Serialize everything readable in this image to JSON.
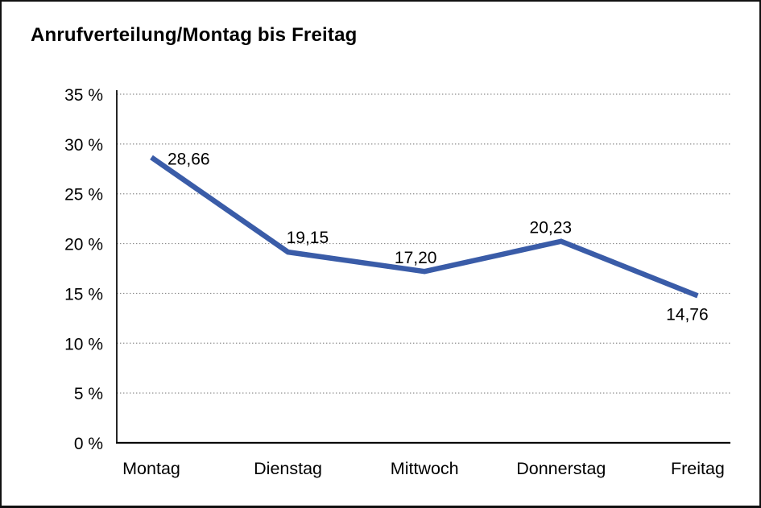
{
  "chart_data": {
    "type": "line",
    "title": "Anrufverteilung/Montag bis Freitag",
    "categories": [
      "Montag",
      "Dienstag",
      "Mittwoch",
      "Donnerstag",
      "Freitag"
    ],
    "series": [
      {
        "name": "Anrufverteilung",
        "values": [
          28.66,
          19.15,
          17.2,
          20.23,
          14.76
        ],
        "data_labels": [
          "28,66",
          "19,15",
          "17,20",
          "20,23",
          "14,76"
        ]
      }
    ],
    "xlabel": "",
    "ylabel": "",
    "ylim": [
      0,
      35
    ],
    "ytick_step": 5,
    "yticks": [
      "0 %",
      "5 %",
      "10 %",
      "15 %",
      "20 %",
      "25 %",
      "30 %",
      "35 %"
    ],
    "grid": "horizontal-dotted",
    "legend": "none",
    "colors": {
      "line": "#3A5CA8",
      "grid": "#8C8C8C",
      "axis": "#000000",
      "text": "#000000",
      "background": "#FFFFFF",
      "frame_border": "#111111"
    }
  }
}
